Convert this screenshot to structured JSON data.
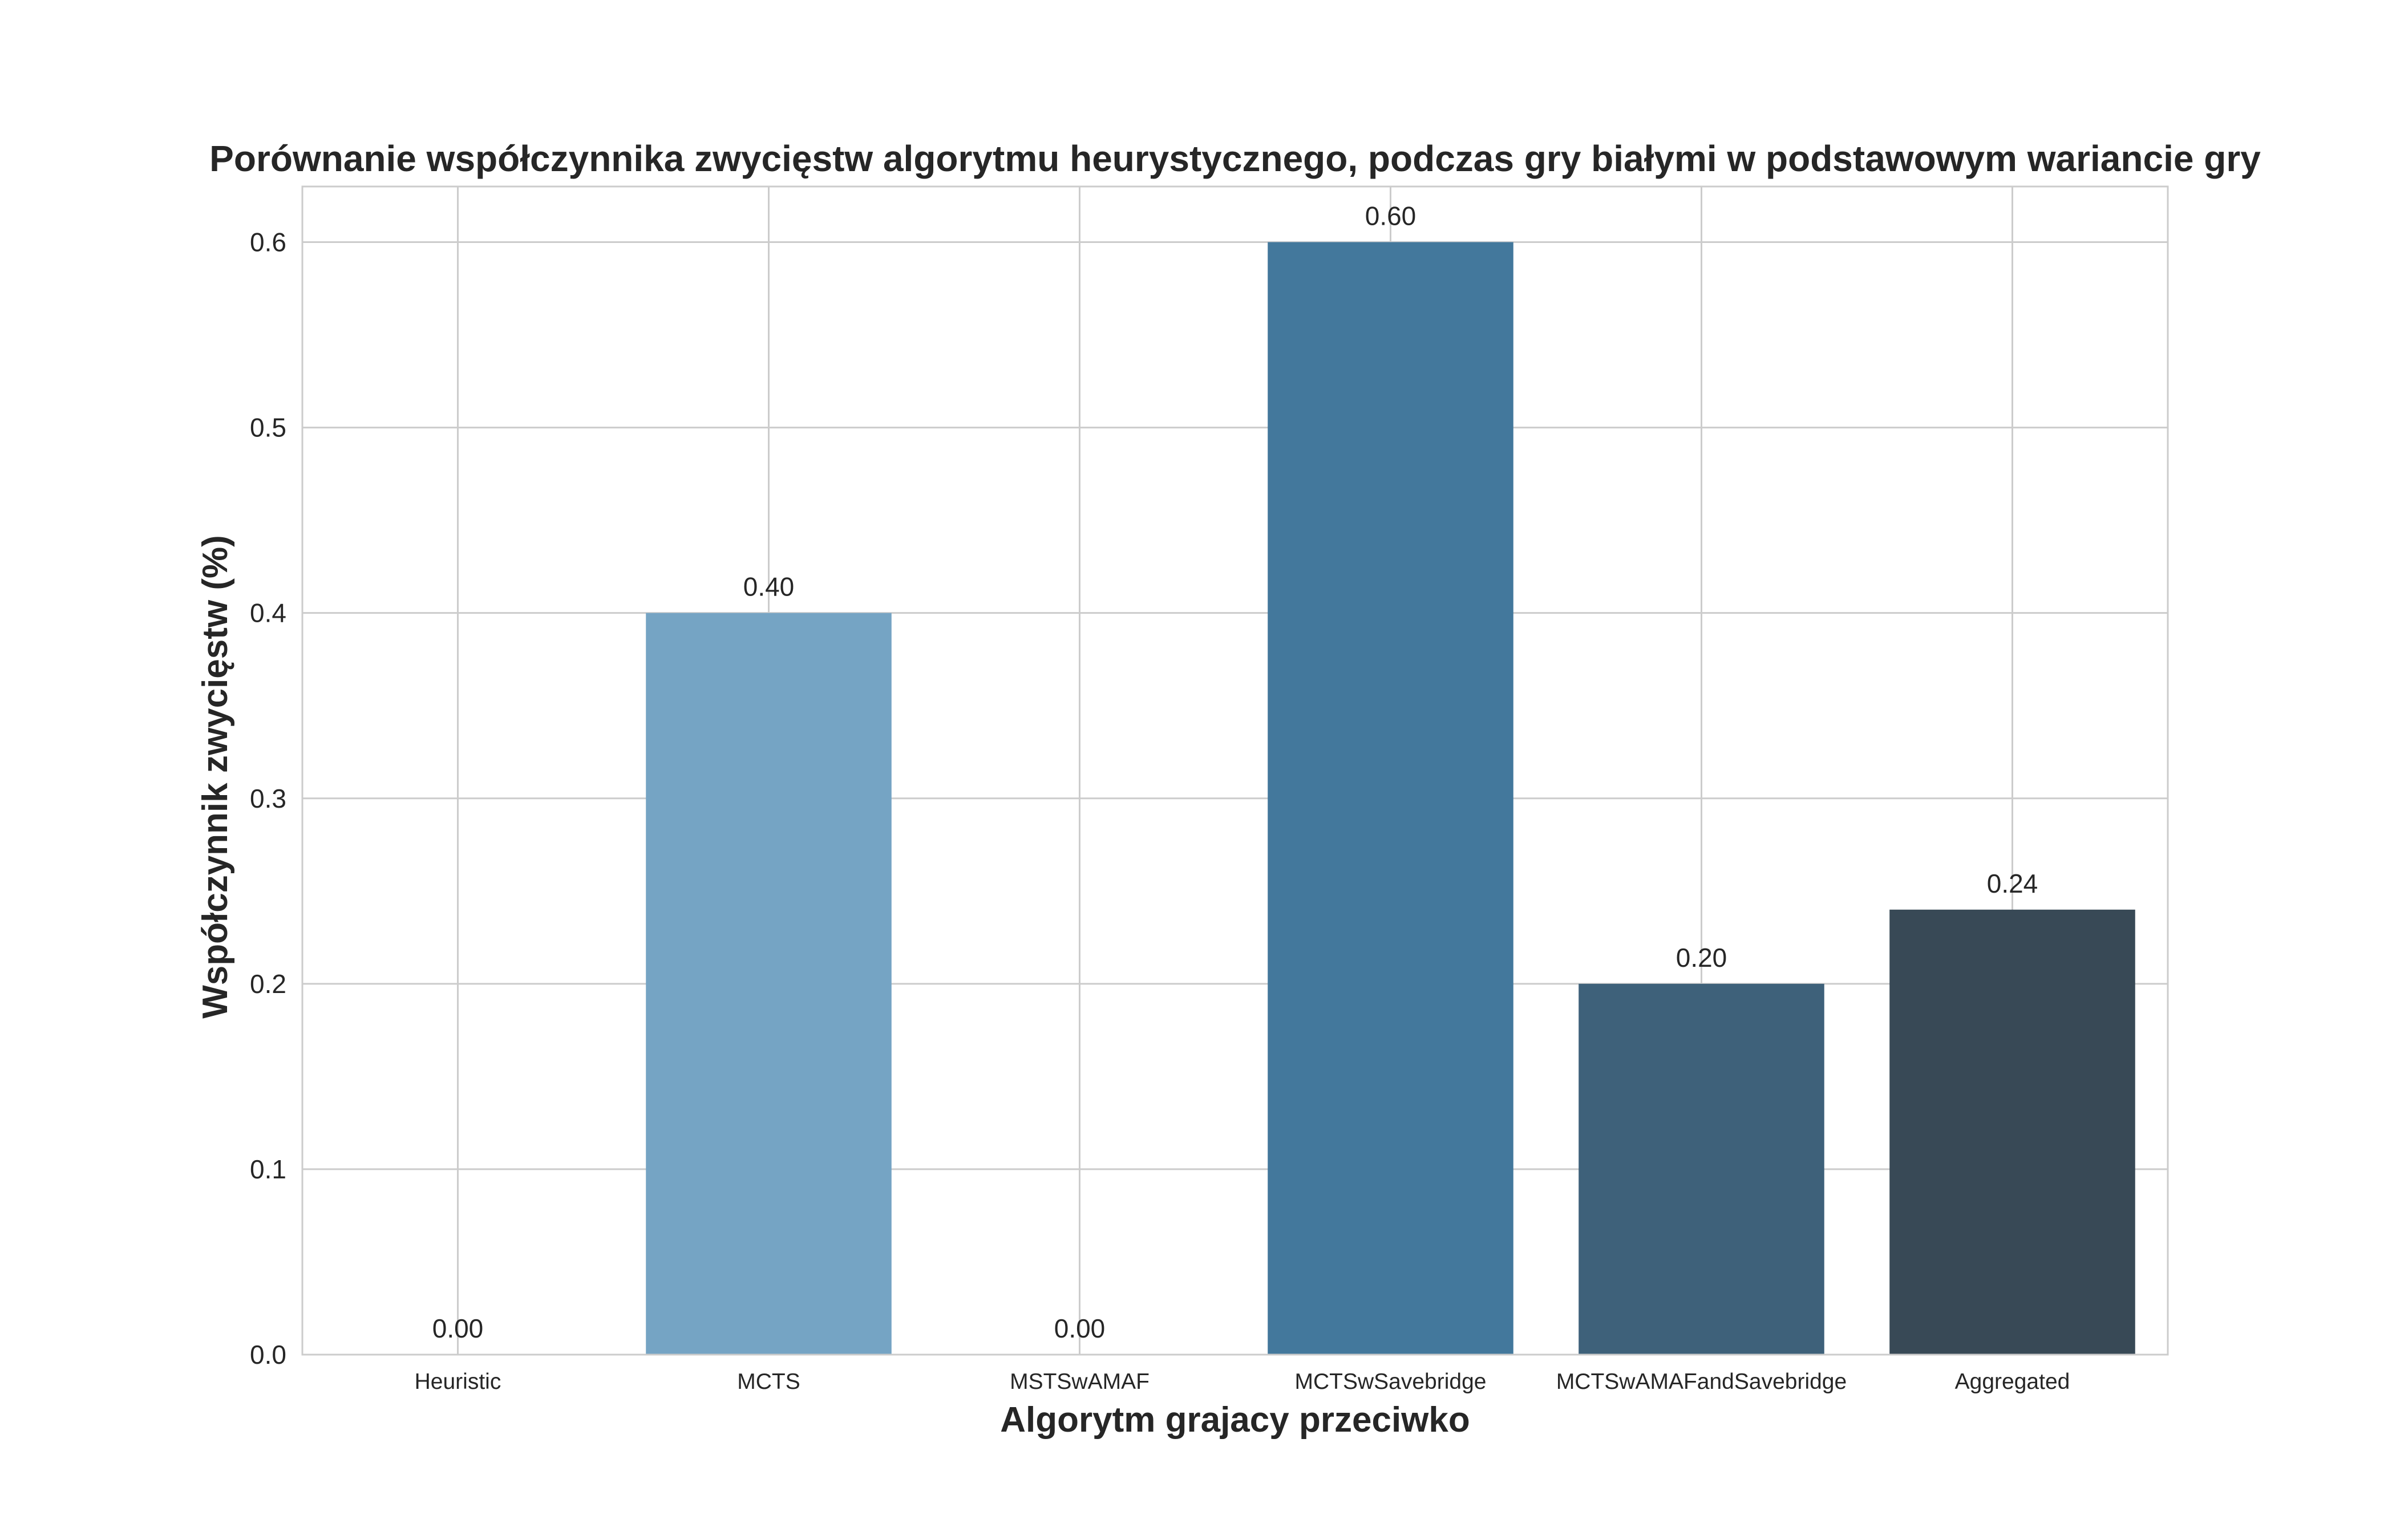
{
  "chart_data": {
    "type": "bar",
    "title": "Porównanie współczynnika zwycięstw algorytmu heurystycznego, podczas gry białymi w podstawowym wariancie gry",
    "xlabel": "Algorytm grajacy przeciwko",
    "ylabel": "Współczynnik zwycięstw (%)",
    "categories": [
      "Heuristic",
      "MCTS",
      "MSTSwAMAF",
      "MCTSwSavebridge",
      "MCTSwAMAFandSavebridge",
      "Aggregated"
    ],
    "values": [
      0.0,
      0.4,
      0.0,
      0.6,
      0.2,
      0.24
    ],
    "value_labels": [
      "0.00",
      "0.40",
      "0.00",
      "0.60",
      "0.20",
      "0.24"
    ],
    "colors": [
      "#85b3d1",
      "#75a4c4",
      "#5e8fb2",
      "#43789c",
      "#3e617a",
      "#384956"
    ],
    "ylim": [
      0,
      0.63
    ],
    "yticks": [
      0.0,
      0.1,
      0.2,
      0.3,
      0.4,
      0.5,
      0.6
    ],
    "ytick_labels": [
      "0.0",
      "0.1",
      "0.2",
      "0.3",
      "0.4",
      "0.5",
      "0.6"
    ],
    "grid": true
  }
}
